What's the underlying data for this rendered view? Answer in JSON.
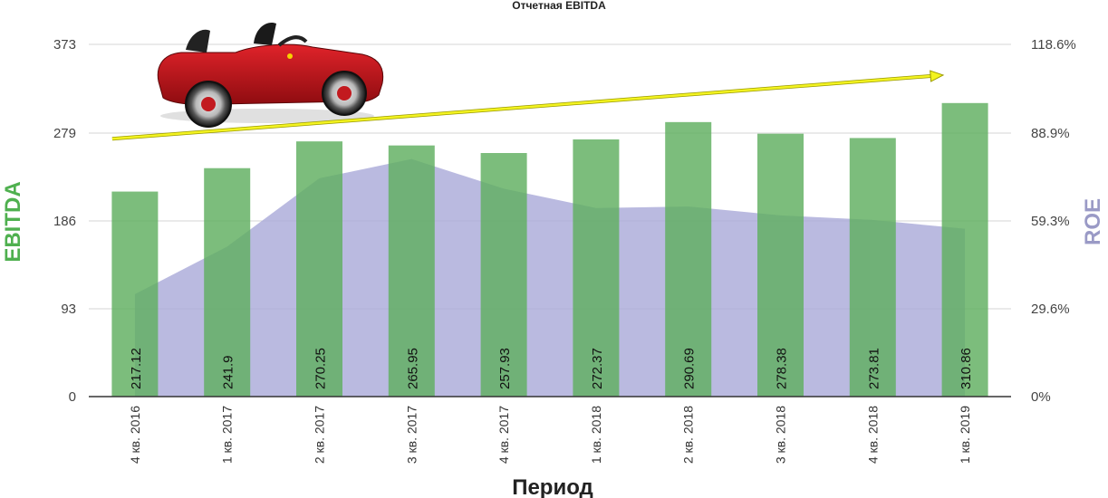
{
  "chart_data": {
    "type": "bar",
    "title": "Отчетная EBITDA",
    "xlabel": "Период",
    "ylabel": "EBITDA",
    "y2label": "ROE",
    "categories": [
      "4 кв. 2016",
      "1 кв. 2017",
      "2 кв. 2017",
      "3 кв. 2017",
      "4 кв. 2017",
      "1 кв. 2018",
      "2 кв. 2018",
      "3 кв. 2018",
      "4 кв. 2018",
      "1 кв. 2019"
    ],
    "series": [
      {
        "name": "EBITDA",
        "type": "bar",
        "axis": "left",
        "values": [
          217.12,
          241.9,
          270.25,
          265.95,
          257.93,
          272.37,
          290.69,
          278.38,
          273.81,
          310.86
        ],
        "labels": [
          "217.12",
          "241.9",
          "270.25",
          "265.95",
          "257.93",
          "272.37",
          "290.69",
          "278.38",
          "273.81",
          "310.86"
        ]
      },
      {
        "name": "ROE",
        "type": "area",
        "axis": "right",
        "values": [
          34.5,
          50.5,
          73.5,
          80.0,
          70.0,
          63.5,
          64.0,
          61.0,
          59.5,
          56.5
        ]
      }
    ],
    "yticks": [
      "0",
      "93",
      "186",
      "279",
      "373"
    ],
    "ytick_values": [
      0,
      93,
      186,
      279,
      373
    ],
    "y2ticks": [
      "0%",
      "29.6%",
      "59.3%",
      "88.9%",
      "118.6%"
    ],
    "ylim": [
      0,
      373
    ],
    "y2lim": [
      0,
      118.6
    ],
    "grid": true,
    "trend_arrow": {
      "from": {
        "x_index": 0,
        "y": 273
      },
      "to": {
        "x_index": 9,
        "y": 340
      }
    },
    "colors": {
      "bar": "#5fae5f",
      "area": "#a9a9d8",
      "trend": "#f3f320",
      "ylabel": "#4fb04f",
      "y2label": "#9a9ac6"
    },
    "decor_icon": "red-toy-car-icon"
  }
}
